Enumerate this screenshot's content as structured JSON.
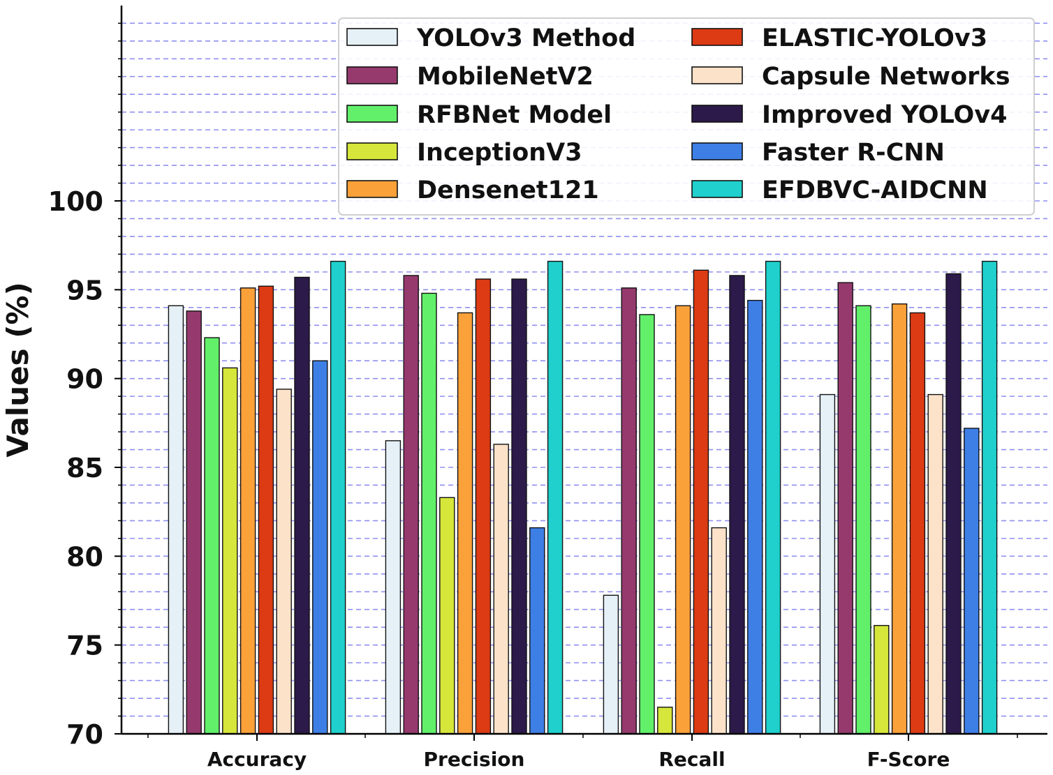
{
  "chart_data": {
    "type": "bar",
    "ylabel": "Values (%)",
    "xlabel": "",
    "ylim": [
      70,
      100
    ],
    "yticks": [
      70,
      75,
      80,
      85,
      90,
      95,
      100
    ],
    "categories": [
      "Accuracy",
      "Precision",
      "Recall",
      "F-Score"
    ],
    "grid": "horizontal dashed",
    "legend_position": "top-right",
    "series": [
      {
        "name": "YOLOv3 Method",
        "color": "#e6f0f7",
        "values": [
          94.1,
          86.5,
          77.8,
          89.1
        ]
      },
      {
        "name": "MobileNetV2",
        "color": "#963a6e",
        "values": [
          93.8,
          95.8,
          95.1,
          95.4
        ]
      },
      {
        "name": "RFBNet Model",
        "color": "#62f06a",
        "values": [
          92.3,
          94.8,
          93.6,
          94.1
        ]
      },
      {
        "name": "InceptionV3",
        "color": "#d6e63a",
        "values": [
          90.6,
          83.3,
          71.5,
          76.1
        ]
      },
      {
        "name": "Densenet121",
        "color": "#fba13a",
        "values": [
          95.1,
          93.7,
          94.1,
          94.2
        ]
      },
      {
        "name": "ELASTIC-YOLOv3",
        "color": "#dc3b14",
        "values": [
          95.2,
          95.6,
          96.1,
          93.7
        ]
      },
      {
        "name": "Capsule Networks",
        "color": "#fbe2c8",
        "values": [
          89.4,
          86.3,
          81.6,
          89.1
        ]
      },
      {
        "name": "Improved YOLOv4",
        "color": "#2c1a4a",
        "values": [
          95.7,
          95.6,
          95.8,
          95.9
        ]
      },
      {
        "name": "Faster R-CNN",
        "color": "#3e7fe6",
        "values": [
          91.0,
          81.6,
          94.4,
          87.2
        ]
      },
      {
        "name": "EFDBVC-AIDCNN",
        "color": "#1fd0cc",
        "values": [
          96.6,
          96.6,
          96.6,
          96.6
        ]
      }
    ]
  }
}
